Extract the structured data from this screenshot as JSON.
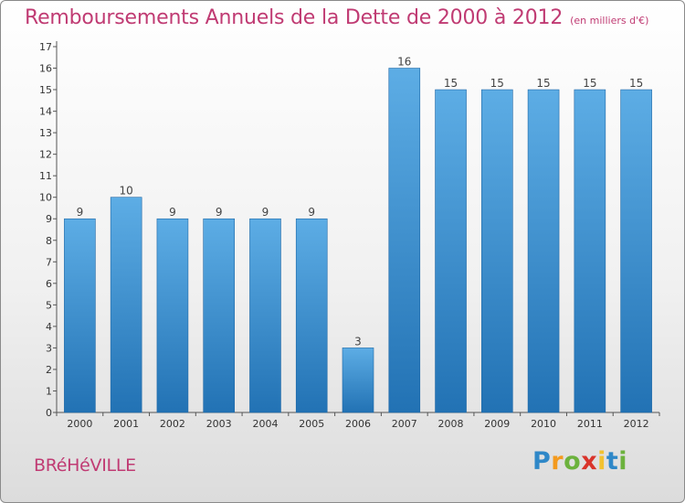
{
  "chart_data": {
    "type": "bar",
    "title": "Remboursements Annuels de la Dette de 2000 à 2012",
    "unit_note": "(en milliers d'€)",
    "categories": [
      "2000",
      "2001",
      "2002",
      "2003",
      "2004",
      "2005",
      "2006",
      "2007",
      "2008",
      "2009",
      "2010",
      "2011",
      "2012"
    ],
    "values": [
      9,
      10,
      9,
      9,
      9,
      9,
      3,
      16,
      15,
      15,
      15,
      15,
      15
    ],
    "data_labels": [
      "9",
      "10",
      "9",
      "9",
      "9",
      "9",
      "3",
      "16",
      "15",
      "15",
      "15",
      "15",
      "15"
    ],
    "ylim": [
      0,
      17
    ],
    "yticks": [
      0,
      1,
      2,
      3,
      4,
      5,
      6,
      7,
      8,
      9,
      10,
      11,
      12,
      13,
      14,
      15,
      16,
      17
    ],
    "ytick_labels": [
      "0",
      "1",
      "2",
      "3",
      "4",
      "5",
      "6",
      "7",
      "8",
      "9",
      "10",
      "11",
      "12",
      "13",
      "14",
      "15",
      "16",
      "17"
    ],
    "grid": false,
    "bar_color_top": "#5dade5",
    "bar_color_bottom": "#2272b4",
    "title_color": "#c03b73"
  },
  "footer": {
    "commune": "BRéHéVILLE",
    "logo_letters": [
      {
        "ch": "P",
        "color": "#2f88c8"
      },
      {
        "ch": "r",
        "color": "#f39a1e"
      },
      {
        "ch": "o",
        "color": "#6cb23d"
      },
      {
        "ch": "x",
        "color": "#d9342b"
      },
      {
        "ch": "i",
        "color": "#f2c230"
      },
      {
        "ch": "t",
        "color": "#2f88c8"
      },
      {
        "ch": "i",
        "color": "#6cb23d"
      }
    ]
  }
}
